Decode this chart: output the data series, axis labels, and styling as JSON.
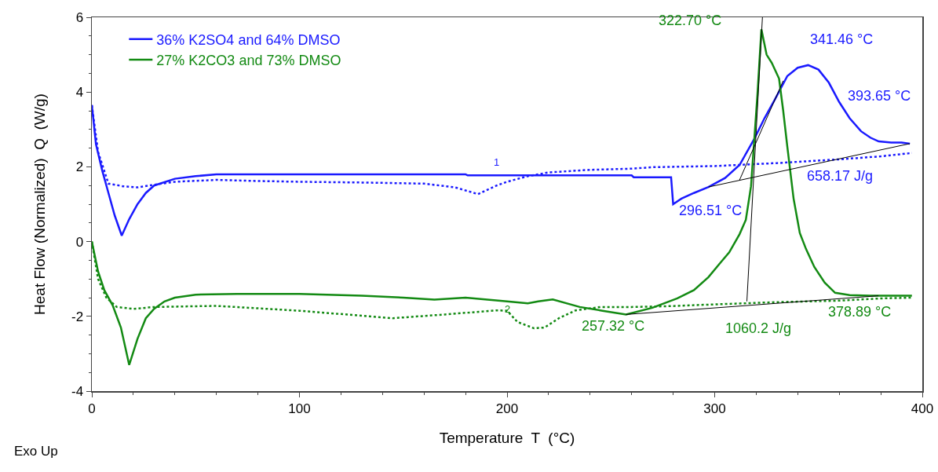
{
  "chart_data": {
    "type": "line",
    "xlabel": "Temperature  T  (°C)",
    "ylabel": "Heat Flow (Normalized)  Q  (W/g)",
    "xlim": [
      0,
      400
    ],
    "ylim": [
      -4,
      6
    ],
    "xticks": [
      0,
      100,
      200,
      300,
      400
    ],
    "yticks": [
      -4,
      -2,
      0,
      2,
      4,
      6
    ],
    "grid": false,
    "legend": "top left",
    "marker": "none",
    "series": [
      {
        "name": "36% K2SO4 and 64% DMSO",
        "color": "#1a1aff",
        "line_style": "solid",
        "x": [
          0,
          2,
          5,
          8,
          11,
          14.4,
          18,
          22,
          26,
          30,
          40,
          50,
          60,
          100,
          180,
          181,
          260,
          261,
          279,
          280,
          284,
          290,
          297,
          305,
          312,
          319,
          324,
          329,
          335,
          340,
          345,
          350,
          355,
          360,
          365,
          370.5,
          375,
          379,
          385,
          390,
          394
        ],
        "values": [
          3.65,
          2.6,
          1.9,
          1.3,
          0.7,
          0.16,
          0.6,
          1.0,
          1.3,
          1.5,
          1.68,
          1.75,
          1.8,
          1.8,
          1.8,
          1.77,
          1.77,
          1.72,
          1.72,
          1.0,
          1.15,
          1.3,
          1.46,
          1.7,
          2.05,
          2.74,
          3.3,
          3.8,
          4.43,
          4.65,
          4.72,
          4.6,
          4.25,
          3.73,
          3.3,
          2.95,
          2.78,
          2.68,
          2.65,
          2.65,
          2.62
        ]
      },
      {
        "color": "#1a1aff",
        "line_style": "dotted",
        "x": [
          0,
          3,
          8,
          15,
          22,
          30,
          40,
          60,
          80,
          100,
          130,
          160,
          175,
          186,
          195,
          200,
          210,
          220,
          240,
          260,
          270,
          300,
          330,
          360,
          380,
          395
        ],
        "values": [
          3.65,
          2.4,
          1.55,
          1.48,
          1.45,
          1.52,
          1.6,
          1.65,
          1.62,
          1.6,
          1.58,
          1.55,
          1.45,
          1.27,
          1.5,
          1.6,
          1.75,
          1.85,
          1.92,
          1.95,
          1.99,
          2.02,
          2.1,
          2.2,
          2.28,
          2.37
        ]
      },
      {
        "name": "27% K2CO3 and 73% DMSO",
        "color": "#138a13",
        "line_style": "solid",
        "x": [
          0,
          3,
          6,
          10,
          14,
          18,
          22,
          26,
          30,
          35,
          40,
          50,
          70,
          100,
          130,
          150,
          165,
          180,
          200,
          210,
          215,
          222,
          235,
          246,
          257.3,
          270,
          282,
          290,
          297,
          303,
          307,
          312,
          315,
          317.5,
          320.6,
          322.5,
          325,
          327.5,
          331,
          333,
          335,
          338,
          341,
          344,
          348,
          353,
          358,
          365,
          375,
          385,
          395
        ],
        "values": [
          0,
          -0.8,
          -1.3,
          -1.7,
          -2.3,
          -3.3,
          -2.6,
          -2.05,
          -1.8,
          -1.6,
          -1.5,
          -1.42,
          -1.4,
          -1.4,
          -1.45,
          -1.5,
          -1.55,
          -1.5,
          -1.6,
          -1.65,
          -1.6,
          -1.55,
          -1.75,
          -1.85,
          -1.95,
          -1.77,
          -1.52,
          -1.3,
          -0.95,
          -0.55,
          -0.29,
          0.2,
          0.58,
          1.48,
          3.94,
          5.68,
          5.0,
          4.78,
          4.36,
          3.5,
          2.53,
          1.15,
          0.23,
          -0.2,
          -0.68,
          -1.1,
          -1.37,
          -1.43,
          -1.45,
          -1.45,
          -1.45
        ]
      },
      {
        "color": "#138a13",
        "line_style": "dotted",
        "x": [
          0,
          3,
          7,
          12,
          20,
          30,
          60,
          100,
          145,
          170,
          195,
          200,
          205,
          213,
          218,
          225,
          233,
          245,
          260,
          277,
          300,
          330,
          360,
          380,
          395
        ],
        "values": [
          0,
          -1.0,
          -1.5,
          -1.75,
          -1.8,
          -1.75,
          -1.72,
          -1.85,
          -2.05,
          -1.95,
          -1.84,
          -1.85,
          -2.15,
          -2.32,
          -2.3,
          -2.05,
          -1.84,
          -1.75,
          -1.75,
          -1.73,
          -1.68,
          -1.62,
          -1.58,
          -1.52,
          -1.5
        ]
      },
      {
        "color": "#000000",
        "line_style": "solid",
        "x": [
          297,
          394
        ],
        "values": [
          1.46,
          2.62
        ]
      },
      {
        "color": "#000000",
        "line_style": "solid",
        "x": [
          312,
          333
        ],
        "values": [
          1.65,
          4.3
        ]
      },
      {
        "color": "#000000",
        "line_style": "solid",
        "x": [
          257.3,
          378.9
        ],
        "values": [
          -1.95,
          -1.45
        ]
      },
      {
        "color": "#000000",
        "line_style": "solid",
        "x": [
          315.5,
          323
        ],
        "values": [
          -1.6,
          6
        ]
      }
    ],
    "annotations": [
      {
        "text": "322.70 °C",
        "x": 322.7,
        "y": 5.68
      },
      {
        "text": "341.46 °C",
        "x": 341.46,
        "y": 4.7
      },
      "393.65 °C",
      {
        "text": "296.51 °C",
        "x": 296.51,
        "y": 1.46
      },
      "658.17 J/g",
      {
        "text": "257.32 °C",
        "x": 257.32,
        "y": -1.95
      },
      {
        "text": "1060.2 J/g",
        "x": 315.5,
        "y": -1.6
      },
      {
        "text": "378.89 °C",
        "x": 378.89,
        "y": -1.45
      },
      {
        "text": "1",
        "x": 195,
        "y": 1.78
      },
      {
        "text": "2",
        "x": 200,
        "y": -1.6
      },
      "Exo Up"
    ]
  }
}
